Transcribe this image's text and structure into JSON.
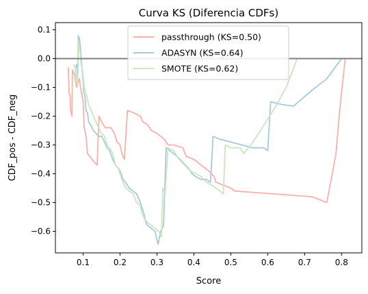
{
  "chart_data": {
    "type": "line",
    "title": "Curva KS (Diferencia CDFs)",
    "xlabel": "Score",
    "ylabel": "CDF_pos - CDF_neg",
    "xlim": [
      0.025,
      0.855
    ],
    "ylim": [
      -0.675,
      0.125
    ],
    "xticks": [
      "0.1",
      "0.2",
      "0.3",
      "0.4",
      "0.5",
      "0.6",
      "0.7",
      "0.8"
    ],
    "yticks": [
      "0.1",
      "0.0",
      "−0.1",
      "−0.2",
      "−0.3",
      "−0.4",
      "−0.5",
      "−0.6"
    ],
    "hline": {
      "y": 0,
      "color": "#808080"
    },
    "legend_position": "upper center",
    "grid": false,
    "series": [
      {
        "name": "passthrough (KS=0.50)",
        "color": "#f8b0a8",
        "points": [
          [
            0.06,
            -0.03
          ],
          [
            0.062,
            -0.12
          ],
          [
            0.065,
            -0.13
          ],
          [
            0.066,
            -0.18
          ],
          [
            0.07,
            -0.2
          ],
          [
            0.071,
            -0.04
          ],
          [
            0.078,
            -0.06
          ],
          [
            0.082,
            -0.1
          ],
          [
            0.09,
            -0.07
          ],
          [
            0.093,
            -0.1
          ],
          [
            0.096,
            -0.12
          ],
          [
            0.1,
            -0.15
          ],
          [
            0.103,
            -0.24
          ],
          [
            0.108,
            -0.27
          ],
          [
            0.112,
            -0.33
          ],
          [
            0.118,
            -0.34
          ],
          [
            0.13,
            -0.36
          ],
          [
            0.138,
            -0.37
          ],
          [
            0.143,
            -0.2
          ],
          [
            0.15,
            -0.22
          ],
          [
            0.16,
            -0.24
          ],
          [
            0.175,
            -0.24
          ],
          [
            0.185,
            -0.26
          ],
          [
            0.192,
            -0.29
          ],
          [
            0.2,
            -0.3
          ],
          [
            0.205,
            -0.33
          ],
          [
            0.212,
            -0.35
          ],
          [
            0.22,
            -0.18
          ],
          [
            0.24,
            -0.19
          ],
          [
            0.255,
            -0.2
          ],
          [
            0.262,
            -0.22
          ],
          [
            0.275,
            -0.23
          ],
          [
            0.285,
            -0.25
          ],
          [
            0.3,
            -0.26
          ],
          [
            0.31,
            -0.27
          ],
          [
            0.32,
            -0.28
          ],
          [
            0.33,
            -0.3
          ],
          [
            0.345,
            -0.3
          ],
          [
            0.37,
            -0.31
          ],
          [
            0.38,
            -0.34
          ],
          [
            0.4,
            -0.35
          ],
          [
            0.42,
            -0.37
          ],
          [
            0.44,
            -0.39
          ],
          [
            0.455,
            -0.41
          ],
          [
            0.46,
            -0.43
          ],
          [
            0.48,
            -0.44
          ],
          [
            0.5,
            -0.45
          ],
          [
            0.51,
            -0.46
          ],
          [
            0.72,
            -0.48
          ],
          [
            0.76,
            -0.5
          ],
          [
            0.775,
            -0.4
          ],
          [
            0.785,
            -0.33
          ],
          [
            0.795,
            -0.18
          ],
          [
            0.81,
            0.0
          ]
        ]
      },
      {
        "name": "ADASYN (KS=0.64)",
        "color": "#a8c8dc",
        "points": [
          [
            0.08,
            -0.03
          ],
          [
            0.083,
            -0.02
          ],
          [
            0.085,
            -0.07
          ],
          [
            0.087,
            0.08
          ],
          [
            0.09,
            0.07
          ],
          [
            0.092,
            0.05
          ],
          [
            0.095,
            0.0
          ],
          [
            0.098,
            -0.05
          ],
          [
            0.1,
            -0.08
          ],
          [
            0.102,
            -0.12
          ],
          [
            0.105,
            -0.13
          ],
          [
            0.108,
            -0.18
          ],
          [
            0.112,
            -0.19
          ],
          [
            0.115,
            -0.22
          ],
          [
            0.12,
            -0.23
          ],
          [
            0.128,
            -0.25
          ],
          [
            0.135,
            -0.26
          ],
          [
            0.142,
            -0.27
          ],
          [
            0.15,
            -0.27
          ],
          [
            0.158,
            -0.29
          ],
          [
            0.165,
            -0.31
          ],
          [
            0.172,
            -0.32
          ],
          [
            0.18,
            -0.35
          ],
          [
            0.188,
            -0.37
          ],
          [
            0.195,
            -0.38
          ],
          [
            0.2,
            -0.39
          ],
          [
            0.208,
            -0.42
          ],
          [
            0.215,
            -0.43
          ],
          [
            0.225,
            -0.45
          ],
          [
            0.235,
            -0.46
          ],
          [
            0.245,
            -0.47
          ],
          [
            0.255,
            -0.5
          ],
          [
            0.265,
            -0.54
          ],
          [
            0.27,
            -0.57
          ],
          [
            0.275,
            -0.58
          ],
          [
            0.285,
            -0.59
          ],
          [
            0.295,
            -0.6
          ],
          [
            0.3,
            -0.63
          ],
          [
            0.303,
            -0.645
          ],
          [
            0.31,
            -0.6
          ],
          [
            0.318,
            -0.58
          ],
          [
            0.325,
            -0.31
          ],
          [
            0.345,
            -0.33
          ],
          [
            0.355,
            -0.34
          ],
          [
            0.37,
            -0.36
          ],
          [
            0.385,
            -0.38
          ],
          [
            0.395,
            -0.4
          ],
          [
            0.405,
            -0.41
          ],
          [
            0.42,
            -0.42
          ],
          [
            0.435,
            -0.42
          ],
          [
            0.445,
            -0.43
          ],
          [
            0.452,
            -0.27
          ],
          [
            0.47,
            -0.28
          ],
          [
            0.5,
            -0.29
          ],
          [
            0.53,
            -0.3
          ],
          [
            0.56,
            -0.31
          ],
          [
            0.59,
            -0.31
          ],
          [
            0.6,
            -0.32
          ],
          [
            0.608,
            -0.15
          ],
          [
            0.64,
            -0.16
          ],
          [
            0.67,
            -0.165
          ],
          [
            0.72,
            -0.11
          ],
          [
            0.76,
            -0.07
          ],
          [
            0.8,
            0.0
          ]
        ]
      },
      {
        "name": "SMOTE (KS=0.62)",
        "color": "#c8e6c0",
        "points": [
          [
            0.075,
            -0.02
          ],
          [
            0.078,
            -0.03
          ],
          [
            0.082,
            -0.08
          ],
          [
            0.085,
            -0.09
          ],
          [
            0.088,
            0.06
          ],
          [
            0.09,
            0.04
          ],
          [
            0.092,
            0.02
          ],
          [
            0.095,
            -0.02
          ],
          [
            0.098,
            -0.04
          ],
          [
            0.1,
            -0.06
          ],
          [
            0.103,
            -0.1
          ],
          [
            0.108,
            -0.12
          ],
          [
            0.115,
            -0.16
          ],
          [
            0.122,
            -0.18
          ],
          [
            0.128,
            -0.2
          ],
          [
            0.135,
            -0.22
          ],
          [
            0.142,
            -0.24
          ],
          [
            0.15,
            -0.26
          ],
          [
            0.158,
            -0.27
          ],
          [
            0.165,
            -0.3
          ],
          [
            0.172,
            -0.31
          ],
          [
            0.18,
            -0.33
          ],
          [
            0.188,
            -0.37
          ],
          [
            0.195,
            -0.38
          ],
          [
            0.2,
            -0.4
          ],
          [
            0.208,
            -0.43
          ],
          [
            0.215,
            -0.45
          ],
          [
            0.225,
            -0.46
          ],
          [
            0.235,
            -0.47
          ],
          [
            0.245,
            -0.5
          ],
          [
            0.255,
            -0.51
          ],
          [
            0.26,
            -0.54
          ],
          [
            0.268,
            -0.56
          ],
          [
            0.275,
            -0.57
          ],
          [
            0.285,
            -0.58
          ],
          [
            0.295,
            -0.59
          ],
          [
            0.305,
            -0.6
          ],
          [
            0.312,
            -0.62
          ],
          [
            0.316,
            -0.45
          ],
          [
            0.322,
            -0.47
          ],
          [
            0.33,
            -0.31
          ],
          [
            0.345,
            -0.32
          ],
          [
            0.36,
            -0.35
          ],
          [
            0.375,
            -0.37
          ],
          [
            0.39,
            -0.39
          ],
          [
            0.405,
            -0.4
          ],
          [
            0.42,
            -0.41
          ],
          [
            0.435,
            -0.43
          ],
          [
            0.448,
            -0.44
          ],
          [
            0.46,
            -0.45
          ],
          [
            0.47,
            -0.46
          ],
          [
            0.48,
            -0.47
          ],
          [
            0.485,
            -0.3
          ],
          [
            0.5,
            -0.31
          ],
          [
            0.525,
            -0.31
          ],
          [
            0.535,
            -0.33
          ],
          [
            0.56,
            -0.29
          ],
          [
            0.59,
            -0.23
          ],
          [
            0.62,
            -0.17
          ],
          [
            0.65,
            -0.1
          ],
          [
            0.68,
            0.0
          ]
        ]
      }
    ]
  }
}
